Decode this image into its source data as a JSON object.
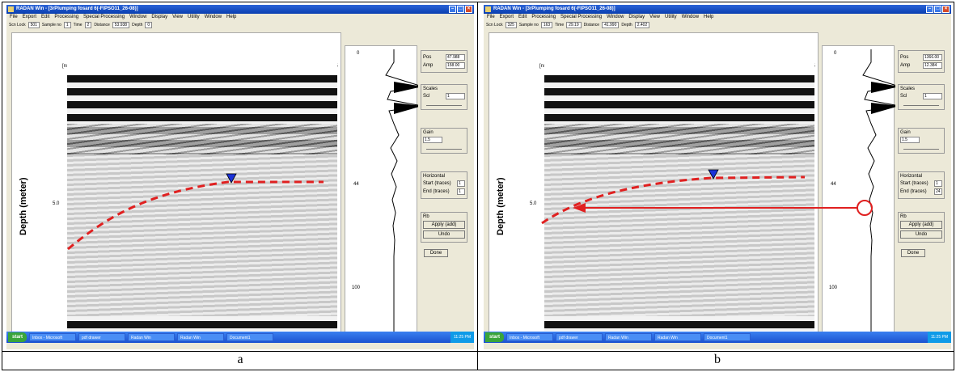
{
  "panels": [
    {
      "caption": "a",
      "window_title": "RADAN Win - [3rPlumping fosard 6(-FIPSO11_26-08)]",
      "menu": [
        "File",
        "Export",
        "Edit",
        "Processing",
        "Special Processing",
        "Window",
        "Display",
        "View",
        "Utility",
        "Window",
        "Help"
      ],
      "toolbar": {
        "scan_label": "Scn Lock",
        "scan_val": "501",
        "sample_label": "Sample no",
        "sample_val": "1",
        "time_label": "Time",
        "time_val": "2",
        "distance_label": "Distance",
        "distance_val": "53.938",
        "depth_label": "Depth",
        "depth_val": "0"
      },
      "axis_top_unit": "[ns]",
      "x_ticks": [
        "0",
        "5",
        "10",
        "15"
      ],
      "y_tick_mid": "5.0",
      "y_label": "Depth (meter)",
      "trace_ticks": [
        "0",
        "44",
        "100"
      ],
      "side": {
        "pos_label": "Pos",
        "pos_val": "47.988",
        "amp_label": "Amp",
        "amp_val": "158.00",
        "scale_group": "Scales",
        "scale_label": "Scl",
        "scale_val": "1",
        "gain_group": "Gain",
        "gain_val": "1.5",
        "rotation_group": "Horizontal",
        "start_label": "Start (traces)",
        "start_val": "1",
        "end_label": "End (traces)",
        "end_val": "1",
        "rb_group": "Rb",
        "apply_btn": "Apply (add)",
        "undo_btn": "Undo",
        "done_btn": "Done"
      },
      "taskbar": {
        "start": "start",
        "tasks": [
          "Inbox - Microsoft",
          "pdf drawer",
          "Radan Win",
          "Radan Win",
          "Document1"
        ],
        "active": "radan-win",
        "tray": "11:25 PM"
      }
    },
    {
      "caption": "b",
      "window_title": "RADAN Win - [3rPlumping fosard 6(-FIPSO11_26-08)]",
      "menu": [
        "File",
        "Export",
        "Edit",
        "Processing",
        "Special Processing",
        "Window",
        "Display",
        "View",
        "Utility",
        "Window",
        "Help"
      ],
      "toolbar": {
        "scan_label": "Scn Lock",
        "scan_val": "325",
        "sample_label": "Sample no",
        "sample_val": "163",
        "time_label": "Time",
        "time_val": "29.19",
        "distance_label": "Distance",
        "distance_val": "41.990",
        "depth_label": "Depth",
        "depth_val": "2.402"
      },
      "axis_top_unit": "[ns]",
      "x_ticks": [
        "0",
        "5",
        "10",
        "15"
      ],
      "y_tick_mid": "5.0",
      "y_label": "Depth (meter)",
      "trace_ticks": [
        "0",
        "44",
        "100"
      ],
      "side": {
        "pos_label": "Pos",
        "pos_val": "1366.00",
        "amp_label": "Amp",
        "amp_val": "12.384",
        "scale_group": "Scales",
        "scale_label": "Scl",
        "scale_val": "1",
        "gain_group": "Gain",
        "gain_val": "1.5",
        "rotation_group": "Horizontal",
        "start_label": "Start (traces)",
        "start_val": "1",
        "end_label": "End (traces)",
        "end_val": "24",
        "rb_group": "Rb",
        "apply_btn": "Apply (add)",
        "undo_btn": "Undo",
        "done_btn": "Done"
      },
      "taskbar": {
        "start": "start",
        "tasks": [
          "Inbox - Microsoft",
          "pdf drawer",
          "Radan Win",
          "Radan Win",
          "Document1"
        ],
        "active": "radan-win",
        "tray": "11:25 PM"
      }
    }
  ],
  "annotation_color": "#e02020",
  "marker_color": "#1a32d8"
}
